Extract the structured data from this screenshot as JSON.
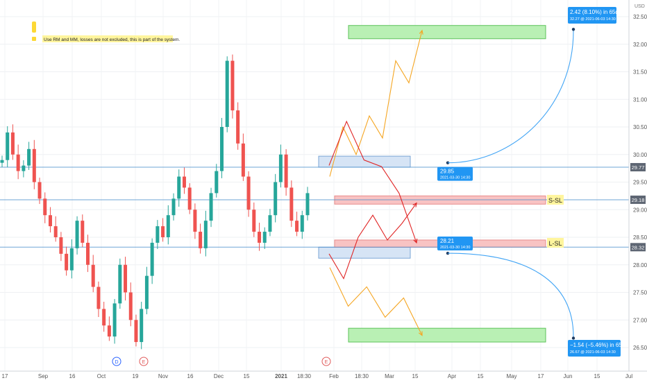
{
  "chart_data": {
    "type": "candlestick",
    "currency": "USD",
    "y_ticks": [
      "32.50",
      "32.00",
      "31.50",
      "31.00",
      "30.50",
      "30.00",
      "29.50",
      "29.00",
      "28.50",
      "28.00",
      "27.50",
      "27.00",
      "26.50"
    ],
    "y_range": [
      26.2,
      32.7
    ],
    "x_ticks": [
      {
        "label": "17",
        "bold": false
      },
      {
        "label": "Sep",
        "bold": false
      },
      {
        "label": "16",
        "bold": false
      },
      {
        "label": "Oct",
        "bold": false
      },
      {
        "label": "19",
        "bold": false
      },
      {
        "label": "Nov",
        "bold": false
      },
      {
        "label": "16",
        "bold": false
      },
      {
        "label": "Dec",
        "bold": false
      },
      {
        "label": "15",
        "bold": false
      },
      {
        "label": "2021",
        "bold": true
      },
      {
        "label": "18:30",
        "bold": false
      },
      {
        "label": "Feb",
        "bold": false
      },
      {
        "label": "18:30",
        "bold": false
      },
      {
        "label": "Mar",
        "bold": false
      },
      {
        "label": "15",
        "bold": false
      },
      {
        "label": "Apr",
        "bold": false
      },
      {
        "label": "15",
        "bold": false
      },
      {
        "label": "May",
        "bold": false
      },
      {
        "label": "17",
        "bold": false
      },
      {
        "label": "Jun",
        "bold": false
      },
      {
        "label": "15",
        "bold": false
      },
      {
        "label": "Jul",
        "bold": false
      }
    ],
    "price_path": [
      29.9,
      30.4,
      30.0,
      29.7,
      29.8,
      30.1,
      29.5,
      29.2,
      28.9,
      28.7,
      28.5,
      28.2,
      27.9,
      28.3,
      28.8,
      28.4,
      28.0,
      27.6,
      27.2,
      26.9,
      26.7,
      27.3,
      28.0,
      27.5,
      27.0,
      26.6,
      27.2,
      27.8,
      28.4,
      28.7,
      28.5,
      28.9,
      29.2,
      29.6,
      29.4,
      29.0,
      28.6,
      28.3,
      28.8,
      29.3,
      29.7,
      30.5,
      31.7,
      30.8,
      30.2,
      29.6,
      29.0,
      28.6,
      28.4,
      28.6,
      28.9,
      29.5,
      30.0,
      29.4,
      28.8,
      28.6,
      28.9,
      29.3
    ],
    "price_lines": [
      {
        "label": "29.77",
        "value": 29.77,
        "color": "#4a8ecb"
      },
      {
        "label": "29.18",
        "value": 29.18,
        "color": "#4a8ecb"
      },
      {
        "label": "28.32",
        "value": 28.32,
        "color": "#4a8ecb"
      }
    ],
    "zones": [
      {
        "kind": "target",
        "color": "#b9f0b4",
        "border": "#5cc25a",
        "y1": 32.34,
        "y2": 32.1
      },
      {
        "kind": "target",
        "color": "#b9f0b4",
        "border": "#5cc25a",
        "y1": 26.85,
        "y2": 26.6
      },
      {
        "kind": "entry",
        "color": "#d6e4f5",
        "border": "#7aa6d6",
        "y1": 29.97,
        "y2": 29.77
      },
      {
        "kind": "entry",
        "color": "#d6e4f5",
        "border": "#7aa6d6",
        "y1": 28.32,
        "y2": 28.12
      },
      {
        "kind": "stop",
        "color": "#f8c3c3",
        "border": "#e88c8c",
        "y1": 29.25,
        "y2": 29.1
      },
      {
        "kind": "stop",
        "color": "#f8c3c3",
        "border": "#e88c8c",
        "y1": 28.45,
        "y2": 28.32
      }
    ],
    "zone_labels": [
      {
        "text": "S-SL",
        "value": 29.18
      },
      {
        "text": "L-SL",
        "value": 28.4
      }
    ],
    "measurements": [
      {
        "value": 29.85,
        "title": "29.85",
        "sub": "2021-03-30 14:30"
      },
      {
        "value": 28.21,
        "title": "28.21",
        "sub": "2021-03-30 14:30"
      }
    ],
    "projections": [
      {
        "title": "2.42 (8.10%) in 65d",
        "sub": "32.27 @ 2021-06-03  14:30",
        "from": 29.85,
        "to": 32.27
      },
      {
        "title": "−1.54 (−5.46%) in 65d",
        "sub": "26.67 @ 2021-06-03  14:30",
        "from": 28.21,
        "to": 26.67
      }
    ],
    "paths": {
      "orange_up": [
        29.6,
        30.5,
        30.0,
        30.7,
        30.3,
        31.7,
        31.3,
        32.25
      ],
      "orange_dn": [
        27.95,
        27.25,
        27.6,
        27.05,
        27.4,
        26.72
      ],
      "red_down": [
        29.8,
        30.6,
        29.9,
        29.78,
        29.3,
        28.4
      ],
      "red_up": [
        28.2,
        27.75,
        28.5,
        28.9,
        28.45,
        28.75,
        29.12
      ]
    },
    "event_markers": [
      {
        "label": "D",
        "color": "#2962ff"
      },
      {
        "label": "E",
        "color": "#e05a5a"
      },
      {
        "label": "E",
        "color": "#e05a5a"
      }
    ],
    "note": "Use RM and MM, losses are not excluded, this is part of the system."
  }
}
